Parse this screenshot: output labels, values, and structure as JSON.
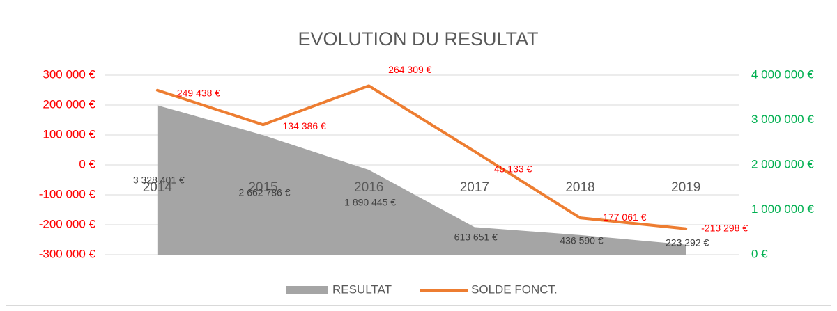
{
  "chart_data": {
    "type": "area-line",
    "title": "EVOLUTION DU RESULTAT",
    "categories": [
      "2014",
      "2015",
      "2016",
      "2017",
      "2018",
      "2019"
    ],
    "series": [
      {
        "name": "RESULTAT",
        "type": "area",
        "axis": "y2",
        "color": "#a5a5a5",
        "values": [
          3328401,
          2662786,
          1890445,
          613651,
          436590,
          223292
        ],
        "value_labels": [
          "3 328 401 €",
          "2 662 786 €",
          "1 890 445 €",
          "613 651 €",
          "436 590 €",
          "223 292 €"
        ]
      },
      {
        "name": "SOLDE FONCT.",
        "type": "line",
        "color": "#ed7d31",
        "values": [
          249438,
          134386,
          264309,
          45133,
          -177061,
          -213298
        ],
        "value_labels": [
          "249 438 €",
          "134 386 €",
          "264 309 €",
          "45 133 €",
          "-177 061 €",
          "-213 298 €"
        ]
      }
    ],
    "ylim": [
      -300000,
      300000
    ],
    "yticks": [
      {
        "value": -300000,
        "label": "-300 000 €"
      },
      {
        "value": -200000,
        "label": "-200 000 €"
      },
      {
        "value": -100000,
        "label": "-100 000 €"
      },
      {
        "value": 0,
        "label": "0 €"
      },
      {
        "value": 100000,
        "label": "100 000 €"
      },
      {
        "value": 200000,
        "label": "200 000 €"
      },
      {
        "value": 300000,
        "label": "300 000 €"
      }
    ],
    "y2lim": [
      0,
      4000000
    ],
    "y2ticks": [
      {
        "value": 0,
        "label": "0 €"
      },
      {
        "value": 1000000,
        "label": "1 000 000 €"
      },
      {
        "value": 2000000,
        "label": "2 000 000 €"
      },
      {
        "value": 3000000,
        "label": "3 000 000 €"
      },
      {
        "value": 4000000,
        "label": "4 000 000 €"
      }
    ],
    "ytick_color": "#ff0000",
    "y2tick_color": "#00b050",
    "grid": true,
    "legend": "bottom"
  }
}
